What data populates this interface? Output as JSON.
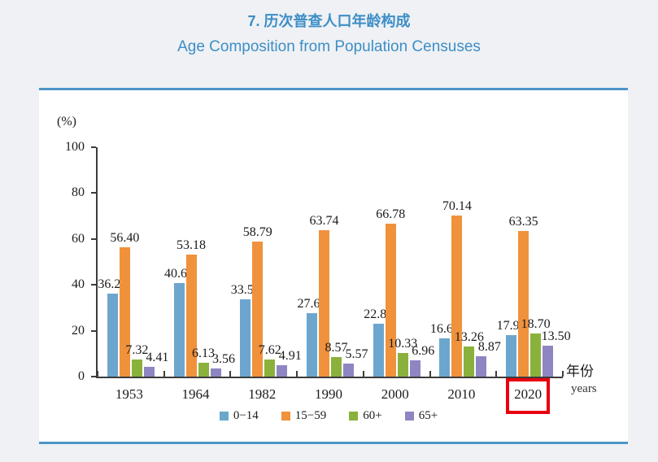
{
  "header": {
    "title_zh": "7. 历次普查人口年龄构成",
    "title_en": "Age Composition from Population Censuses",
    "title_color": "#3d8ec7"
  },
  "panel": {
    "border_color": "#4d95c8",
    "background": "#ffffff",
    "page_background": "#eff1f4"
  },
  "chart_data": {
    "type": "bar",
    "title_zh": "7. 历次普查人口年龄构成",
    "title_en": "Age Composition from Population Censuses",
    "unit_label": "(%)",
    "categories": [
      "1953",
      "1964",
      "1982",
      "1990",
      "2000",
      "2010",
      "2020"
    ],
    "series": [
      {
        "name": "0−14",
        "color": "#6ca6ce",
        "values": [
          36.28,
          40.69,
          33.59,
          27.69,
          22.89,
          16.6,
          17.95
        ]
      },
      {
        "name": "15−59",
        "color": "#f0923c",
        "values": [
          56.4,
          53.18,
          58.79,
          63.74,
          66.78,
          70.14,
          63.35
        ]
      },
      {
        "name": "60+",
        "color": "#8ab13c",
        "values": [
          7.32,
          6.13,
          7.62,
          8.57,
          10.33,
          13.26,
          18.7
        ]
      },
      {
        "name": "65+",
        "color": "#8e86c2",
        "values": [
          4.41,
          3.56,
          4.91,
          5.57,
          6.96,
          8.87,
          13.5
        ]
      }
    ],
    "ylim": [
      0,
      100
    ],
    "yticks": [
      0,
      20,
      40,
      60,
      80,
      100
    ],
    "value_label_decimals": 2,
    "xlabel_zh": "年份",
    "xlabel_en": "years",
    "legend_position": "bottom",
    "grid": false,
    "highlighted_category": "2020",
    "highlight_color": "#e8000f",
    "axis_color": "#3c3c3c"
  }
}
